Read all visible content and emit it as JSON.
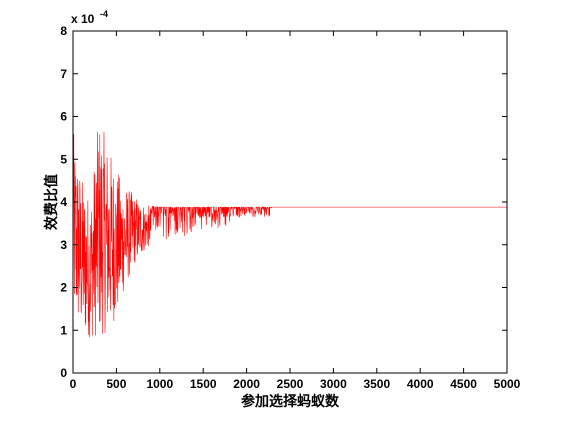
{
  "chart_data": {
    "type": "line",
    "title": "",
    "xlabel": "参加选择蚂蚁数",
    "ylabel": "效费比值",
    "xlim": [
      0,
      5000
    ],
    "ylim": [
      0,
      8
    ],
    "y_scale_label": {
      "base": "x 10",
      "exponent": "-4"
    },
    "xticks": [
      0,
      500,
      1000,
      1500,
      2000,
      2500,
      3000,
      3500,
      4000,
      4500,
      5000
    ],
    "yticks": [
      0,
      1,
      2,
      3,
      4,
      5,
      6,
      7,
      8
    ],
    "grid": false,
    "line_color": "#ff0000",
    "series": [
      {
        "style": "noisy-converging",
        "x_end": 5000,
        "final_value": 3.88,
        "approx_envelope": [
          {
            "x": 0,
            "min": 1.3,
            "max": 5.7
          },
          {
            "x": 100,
            "min": 0.9,
            "max": 4.6
          },
          {
            "x": 200,
            "min": 0.82,
            "max": 4.1
          },
          {
            "x": 300,
            "min": 0.85,
            "max": 6.0
          },
          {
            "x": 400,
            "min": 0.95,
            "max": 5.4
          },
          {
            "x": 500,
            "min": 1.3,
            "max": 4.8
          },
          {
            "x": 600,
            "min": 2.0,
            "max": 4.4
          },
          {
            "x": 700,
            "min": 2.5,
            "max": 4.2
          },
          {
            "x": 800,
            "min": 2.8,
            "max": 4.0
          },
          {
            "x": 900,
            "min": 3.0,
            "max": 3.9
          },
          {
            "x": 1000,
            "min": 3.1,
            "max": 3.88
          },
          {
            "x": 1200,
            "min": 3.15,
            "max": 3.88
          },
          {
            "x": 1500,
            "min": 3.3,
            "max": 3.88
          },
          {
            "x": 1700,
            "min": 3.4,
            "max": 3.88
          },
          {
            "x": 1900,
            "min": 3.55,
            "max": 3.88
          },
          {
            "x": 2000,
            "min": 3.72,
            "max": 3.88
          },
          {
            "x": 2200,
            "min": 3.75,
            "max": 3.88
          },
          {
            "x": 2300,
            "min": 3.88,
            "max": 3.88
          },
          {
            "x": 5000,
            "min": 3.88,
            "max": 3.88
          }
        ]
      }
    ]
  }
}
